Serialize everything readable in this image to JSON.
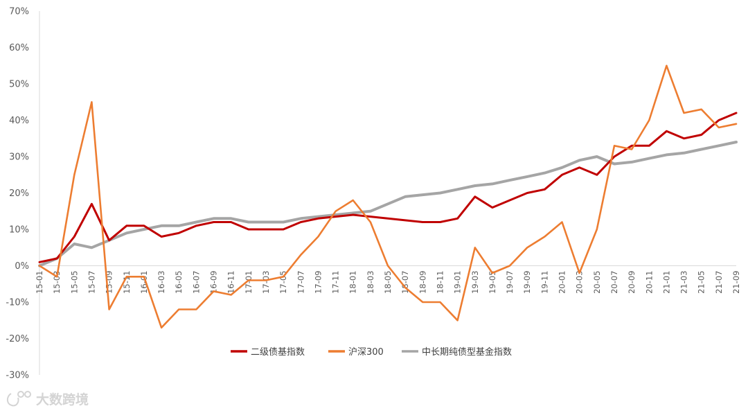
{
  "chart_data": {
    "type": "line",
    "title": "",
    "xlabel": "",
    "ylabel": "",
    "yunit": "%",
    "ylim": [
      -30,
      70
    ],
    "yticks": [
      -30,
      -20,
      -10,
      0,
      10,
      20,
      30,
      40,
      50,
      60,
      70
    ],
    "ytick_labels": [
      "-30%",
      "-20%",
      "-10%",
      "0%",
      "10%",
      "20%",
      "30%",
      "40%",
      "50%",
      "60%",
      "70%"
    ],
    "x": [
      "15-01",
      "15-03",
      "15-05",
      "15-07",
      "15-09",
      "15-11",
      "16-01",
      "16-03",
      "16-05",
      "16-07",
      "16-09",
      "16-11",
      "17-01",
      "17-03",
      "17-05",
      "17-07",
      "17-09",
      "17-11",
      "18-01",
      "18-03",
      "18-05",
      "18-07",
      "18-09",
      "18-11",
      "19-01",
      "19-03",
      "19-05",
      "19-07",
      "19-09",
      "19-11",
      "20-01",
      "20-03",
      "20-05",
      "20-07",
      "20-09",
      "20-11",
      "21-01",
      "21-03",
      "21-05",
      "21-07",
      "21-09"
    ],
    "grid": false,
    "legend_position": "bottom",
    "series": [
      {
        "name": "二级债基指数",
        "color": "#c00000",
        "values": [
          1,
          2,
          8,
          17,
          7,
          11,
          11,
          8,
          9,
          11,
          12,
          12,
          10,
          10,
          10,
          12,
          13,
          13.5,
          14,
          13.5,
          13,
          12.5,
          12,
          12,
          13,
          19,
          16,
          18,
          20,
          21,
          25,
          27,
          25,
          30,
          33,
          33,
          37,
          35,
          36,
          40,
          42
        ]
      },
      {
        "name": "沪深300",
        "color": "#ed7d31",
        "values": [
          0,
          -3,
          25,
          45,
          -12,
          -3,
          -3,
          -17,
          -12,
          -12,
          -7,
          -8,
          -4,
          -4,
          -3,
          3,
          8,
          15,
          18,
          12,
          0,
          -6,
          -10,
          -10,
          -15,
          5,
          -2,
          0,
          5,
          8,
          12,
          -2,
          10,
          33,
          32,
          40,
          55,
          42,
          43,
          38,
          39
        ]
      },
      {
        "name": "中长期纯债型基金指数",
        "color": "#a5a5a5",
        "values": [
          0,
          2,
          6,
          5,
          7,
          9,
          10,
          11,
          11,
          12,
          13,
          13,
          12,
          12,
          12,
          13,
          13.5,
          14,
          14.5,
          15,
          17,
          19,
          19.5,
          20,
          21,
          22,
          22.5,
          23.5,
          24.5,
          25.5,
          27,
          29,
          30,
          28,
          28.5,
          29.5,
          30.5,
          31,
          32,
          33,
          34
        ]
      }
    ]
  },
  "watermark": {
    "text": "大数跨境"
  }
}
